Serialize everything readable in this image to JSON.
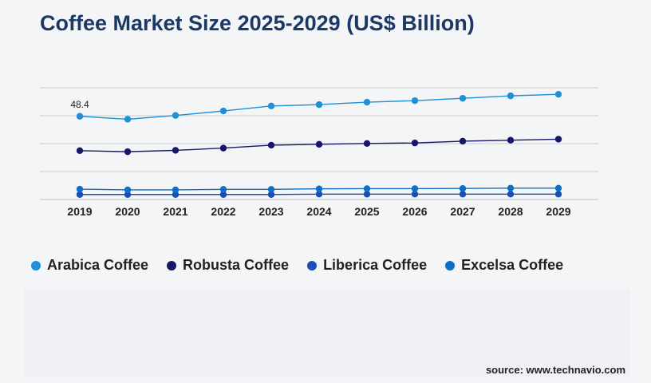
{
  "chart_data": {
    "type": "line",
    "title": "Coffee Market Size 2025-2029 (US$ Billion)",
    "xlabel": "",
    "ylabel": "",
    "categories": [
      "2019",
      "2020",
      "2021",
      "2022",
      "2023",
      "2024",
      "2025",
      "2026",
      "2027",
      "2028",
      "2029"
    ],
    "ylim": [
      0,
      65
    ],
    "grid": true,
    "legend_position": "bottom",
    "annotations": [
      {
        "series": "Arabica Coffee",
        "x": "2019",
        "label": "48.4"
      }
    ],
    "series": [
      {
        "name": "Arabica Coffee",
        "color": "#1f8fd6",
        "values": [
          48.4,
          46.7,
          48.9,
          51.5,
          54.4,
          55.2,
          56.6,
          57.5,
          58.9,
          60.3,
          61.2
        ]
      },
      {
        "name": "Robusta Coffee",
        "color": "#17166b",
        "values": [
          28.4,
          27.8,
          28.6,
          29.9,
          31.6,
          32.1,
          32.6,
          32.9,
          33.9,
          34.5,
          35.1
        ]
      },
      {
        "name": "Liberica Coffee",
        "color": "#1a4fb5",
        "values": [
          2.9,
          2.9,
          2.9,
          2.9,
          2.9,
          3.1,
          3.1,
          3.1,
          3.1,
          3.1,
          3.1
        ]
      },
      {
        "name": "Excelsa Coffee",
        "color": "#0f6fc6",
        "values": [
          6.0,
          5.6,
          5.6,
          5.9,
          5.9,
          6.2,
          6.3,
          6.3,
          6.4,
          6.6,
          6.6
        ]
      }
    ]
  },
  "source": "source: www.technavio.com"
}
